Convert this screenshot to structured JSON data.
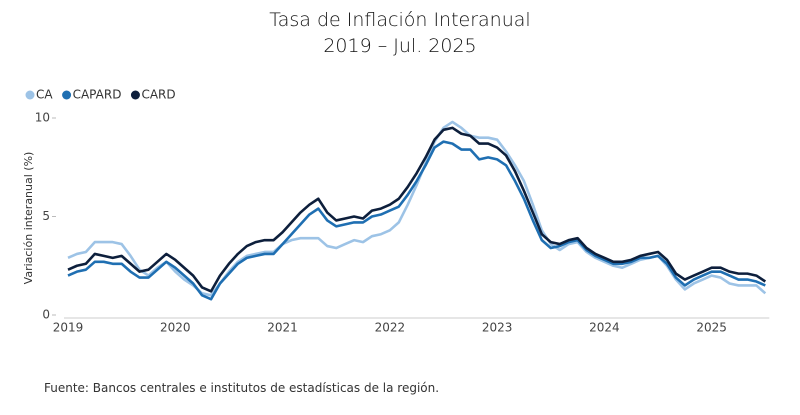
{
  "chart_data": {
    "type": "line",
    "title": "Tasa de Inflación Interanual",
    "subtitle": "2019 – Jul. 2025",
    "y_label": "Variación interanual (%)",
    "source": "Fuente: Bancos centrales e institutos de estadísticas de la región.",
    "categories": [
      "2019",
      null,
      null,
      null,
      null,
      null,
      null,
      null,
      null,
      null,
      null,
      null,
      "2020",
      null,
      null,
      null,
      null,
      null,
      null,
      null,
      null,
      null,
      null,
      null,
      "2021",
      null,
      null,
      null,
      null,
      null,
      null,
      null,
      null,
      null,
      null,
      null,
      "2022",
      null,
      null,
      null,
      null,
      null,
      null,
      null,
      null,
      null,
      null,
      null,
      "2023",
      null,
      null,
      null,
      null,
      null,
      null,
      null,
      null,
      null,
      null,
      null,
      "2024",
      null,
      null,
      null,
      null,
      null,
      null,
      null,
      null,
      null,
      null,
      null,
      "2025",
      null,
      null,
      null,
      null,
      null,
      null
    ],
    "ylim": [
      0,
      10
    ],
    "yticks": [
      0,
      5,
      10
    ],
    "legend": "top-left",
    "series": [
      {
        "name": "CA",
        "color": "#9dc3e6",
        "values": [
          2.9,
          3.1,
          3.2,
          3.7,
          3.7,
          3.7,
          3.6,
          3.0,
          2.3,
          2.0,
          2.4,
          2.7,
          2.2,
          1.8,
          1.5,
          1.1,
          1.0,
          1.6,
          2.2,
          2.7,
          3.0,
          3.1,
          3.2,
          3.2,
          3.6,
          3.8,
          3.9,
          3.9,
          3.9,
          3.5,
          3.4,
          3.6,
          3.8,
          3.7,
          4.0,
          4.1,
          4.3,
          4.7,
          5.6,
          6.6,
          7.7,
          8.8,
          9.5,
          9.8,
          9.5,
          9.1,
          9.0,
          9.0,
          8.9,
          8.3,
          7.6,
          6.8,
          5.6,
          4.3,
          3.6,
          3.3,
          3.6,
          3.7,
          3.2,
          2.9,
          2.7,
          2.5,
          2.4,
          2.6,
          2.8,
          2.9,
          3.0,
          2.5,
          1.8,
          1.3,
          1.6,
          1.8,
          2.0,
          1.9,
          1.6,
          1.5,
          1.5,
          1.5,
          1.1
        ]
      },
      {
        "name": "CAPARD",
        "color": "#1f6fb2",
        "values": [
          2.0,
          2.2,
          2.3,
          2.7,
          2.7,
          2.6,
          2.6,
          2.2,
          1.9,
          1.9,
          2.3,
          2.7,
          2.4,
          2.0,
          1.6,
          1.0,
          0.8,
          1.6,
          2.1,
          2.6,
          2.9,
          3.0,
          3.1,
          3.1,
          3.6,
          4.1,
          4.6,
          5.1,
          5.4,
          4.8,
          4.5,
          4.6,
          4.7,
          4.7,
          5.0,
          5.1,
          5.3,
          5.5,
          6.1,
          6.8,
          7.6,
          8.5,
          8.8,
          8.7,
          8.4,
          8.4,
          7.9,
          8.0,
          7.9,
          7.6,
          6.8,
          5.9,
          4.8,
          3.8,
          3.4,
          3.5,
          3.7,
          3.8,
          3.3,
          3.0,
          2.8,
          2.6,
          2.6,
          2.7,
          2.9,
          2.9,
          3.0,
          2.6,
          1.9,
          1.5,
          1.8,
          2.0,
          2.2,
          2.2,
          2.0,
          1.8,
          1.8,
          1.7,
          1.5
        ]
      },
      {
        "name": "CARD",
        "color": "#0d1f3c",
        "values": [
          2.3,
          2.5,
          2.6,
          3.1,
          3.0,
          2.9,
          3.0,
          2.6,
          2.2,
          2.3,
          2.7,
          3.1,
          2.8,
          2.4,
          2.0,
          1.4,
          1.2,
          2.0,
          2.6,
          3.1,
          3.5,
          3.7,
          3.8,
          3.8,
          4.2,
          4.7,
          5.2,
          5.6,
          5.9,
          5.2,
          4.8,
          4.9,
          5.0,
          4.9,
          5.3,
          5.4,
          5.6,
          5.9,
          6.5,
          7.2,
          8.0,
          8.9,
          9.4,
          9.5,
          9.2,
          9.1,
          8.7,
          8.7,
          8.5,
          8.1,
          7.3,
          6.3,
          5.2,
          4.1,
          3.7,
          3.6,
          3.8,
          3.9,
          3.4,
          3.1,
          2.9,
          2.7,
          2.7,
          2.8,
          3.0,
          3.1,
          3.2,
          2.8,
          2.1,
          1.8,
          2.0,
          2.2,
          2.4,
          2.4,
          2.2,
          2.1,
          2.1,
          2.0,
          1.7
        ]
      }
    ]
  }
}
